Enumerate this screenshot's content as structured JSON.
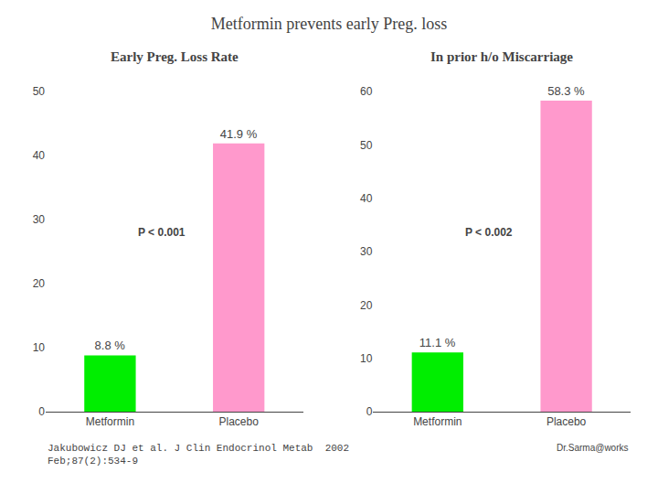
{
  "title": "Metformin prevents early Preg. loss",
  "annotations": [
    "Jakubowicz DJ et al. J Clin Endocrinol Metab  2002\nFeb;87(2):534-9",
    "Dr.Sarma@works"
  ],
  "chart_data": [
    {
      "type": "bar",
      "title": "Early Preg. Loss Rate",
      "categories": [
        "Metformin",
        "Placebo"
      ],
      "values": [
        8.8,
        41.9
      ],
      "value_labels": [
        "8.8 %",
        "41.9 %"
      ],
      "colors": [
        "#00EE00",
        "#FF99CC"
      ],
      "ylim": [
        0,
        50
      ],
      "yticks": [
        0,
        10,
        20,
        30,
        40,
        50
      ],
      "annotations": [
        "P < 0.001"
      ],
      "data_labels": true,
      "grid": false
    },
    {
      "type": "bar",
      "title": "In prior h/o Miscarriage",
      "categories": [
        "Metformin",
        "Placebo"
      ],
      "values": [
        11.1,
        58.3
      ],
      "value_labels": [
        "11.1 %",
        "58.3 %"
      ],
      "colors": [
        "#00EE00",
        "#FF99CC"
      ],
      "ylim": [
        0,
        60
      ],
      "yticks": [
        0,
        10,
        20,
        30,
        40,
        50,
        60
      ],
      "annotations": [
        "P < 0.002"
      ],
      "data_labels": true,
      "grid": false
    }
  ]
}
